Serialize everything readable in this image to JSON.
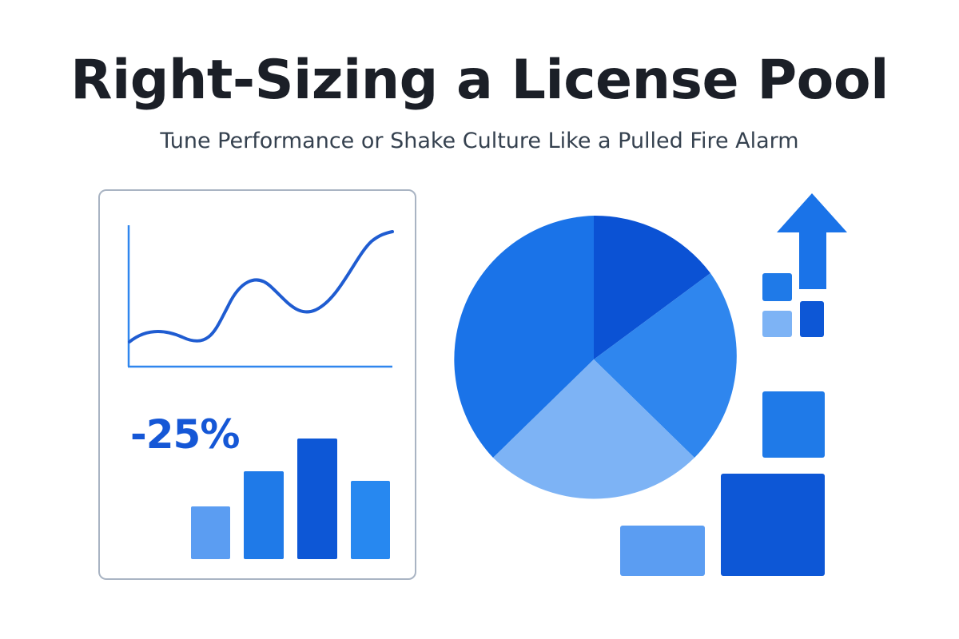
{
  "header": {
    "title": "Right-Sizing a License Pool",
    "subtitle": "Tune Performance or Shake Culture Like a Pulled Fire Alarm"
  },
  "chart_card": {
    "stat_value": "-25%"
  },
  "colors": {
    "primary": "#1a73e8",
    "deep": "#0b52d4",
    "light": "#7db3f5",
    "mid": "#2f86ee",
    "text": "#1b1f27",
    "card_border": "#a9b4c3"
  },
  "icons": [
    "line-chart-icon",
    "bar-chart-icon",
    "pie-chart-icon",
    "up-arrow-icon",
    "squares-icon"
  ]
}
